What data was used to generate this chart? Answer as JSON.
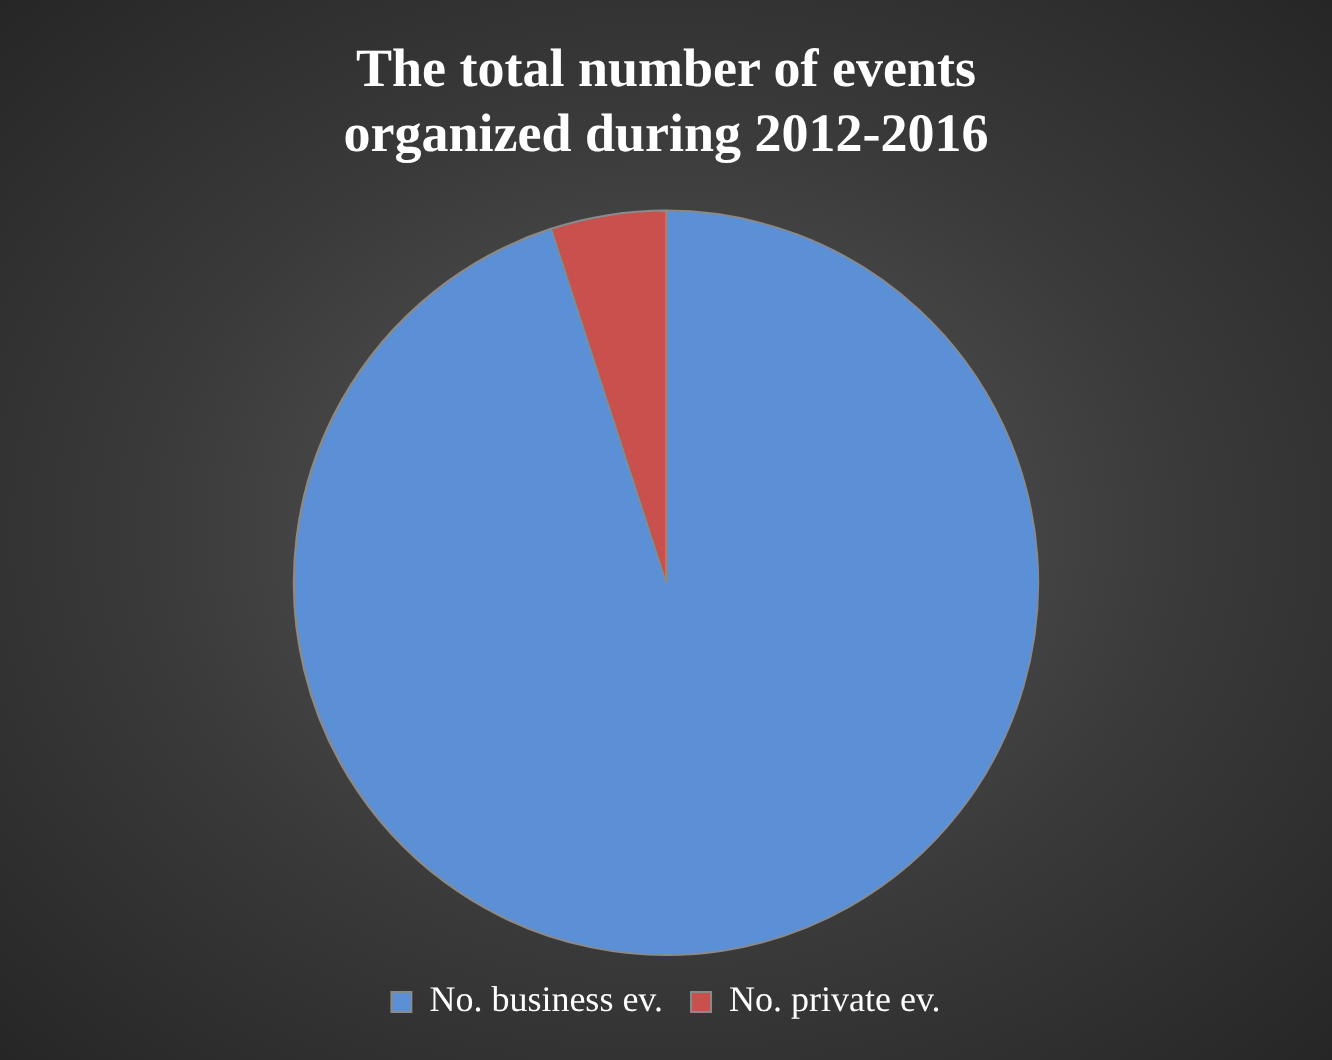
{
  "chart_data": {
    "type": "pie",
    "title": "The total number of events organized during 2012-2016",
    "categories": [
      "No. business ev.",
      "No. private ev."
    ],
    "values": [
      95,
      5
    ],
    "colors": [
      "#5b8fd6",
      "#c9504d"
    ],
    "legend": "bottom"
  }
}
